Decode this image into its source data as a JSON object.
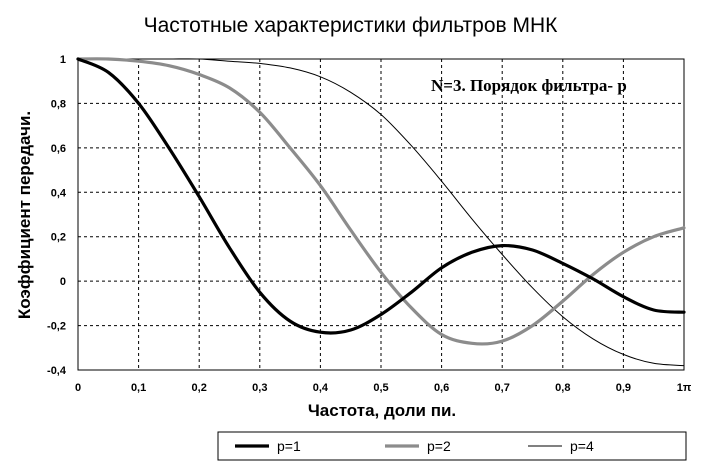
{
  "chart_data": {
    "type": "line",
    "title": "Частотные характеристики фильтров МНК",
    "xlabel": "Частота, доли пи.",
    "ylabel": "Коэффициент передачи.",
    "annotation": "N=3. Порядок фильтра- p",
    "xlim": [
      0,
      1
    ],
    "ylim": [
      -0.4,
      1
    ],
    "x_ticks": [
      0,
      0.1,
      0.2,
      0.3,
      0.4,
      0.5,
      0.6,
      0.7,
      0.8,
      0.9,
      1
    ],
    "x_tick_labels": [
      "0",
      "0,1",
      "0,2",
      "0,3",
      "0,4",
      "0,5",
      "0,6",
      "0,7",
      "0,8",
      "0,9",
      "1π"
    ],
    "y_ticks": [
      -0.4,
      -0.2,
      0,
      0.2,
      0.4,
      0.6,
      0.8,
      1
    ],
    "y_tick_labels": [
      "-0,4",
      "-0,2",
      "0",
      "0,2",
      "0,4",
      "0,6",
      "0,8",
      "1"
    ],
    "grid": "dashed",
    "legend_position": "bottom",
    "x": [
      0,
      0.05,
      0.1,
      0.15,
      0.2,
      0.25,
      0.3,
      0.35,
      0.4,
      0.45,
      0.5,
      0.55,
      0.6,
      0.65,
      0.7,
      0.75,
      0.8,
      0.85,
      0.9,
      0.95,
      1
    ],
    "series": [
      {
        "name": "p=1",
        "color": "#000000",
        "width": 3.2,
        "values": [
          1.0,
          0.94,
          0.8,
          0.6,
          0.38,
          0.15,
          -0.05,
          -0.18,
          -0.23,
          -0.22,
          -0.15,
          -0.05,
          0.06,
          0.13,
          0.16,
          0.14,
          0.08,
          0.01,
          -0.07,
          -0.13,
          -0.14
        ]
      },
      {
        "name": "p=2",
        "color": "#8c8c8c",
        "width": 3.2,
        "values": [
          1.0,
          1.0,
          0.99,
          0.97,
          0.93,
          0.87,
          0.76,
          0.6,
          0.43,
          0.23,
          0.04,
          -0.12,
          -0.24,
          -0.28,
          -0.27,
          -0.2,
          -0.09,
          0.03,
          0.13,
          0.2,
          0.24
        ]
      },
      {
        "name": "p=4",
        "color": "#000000",
        "width": 1,
        "values": [
          1.0,
          1.0,
          1.0,
          1.0,
          1.0,
          0.99,
          0.98,
          0.96,
          0.92,
          0.85,
          0.75,
          0.61,
          0.45,
          0.28,
          0.12,
          -0.03,
          -0.16,
          -0.26,
          -0.33,
          -0.37,
          -0.38
        ]
      }
    ]
  }
}
